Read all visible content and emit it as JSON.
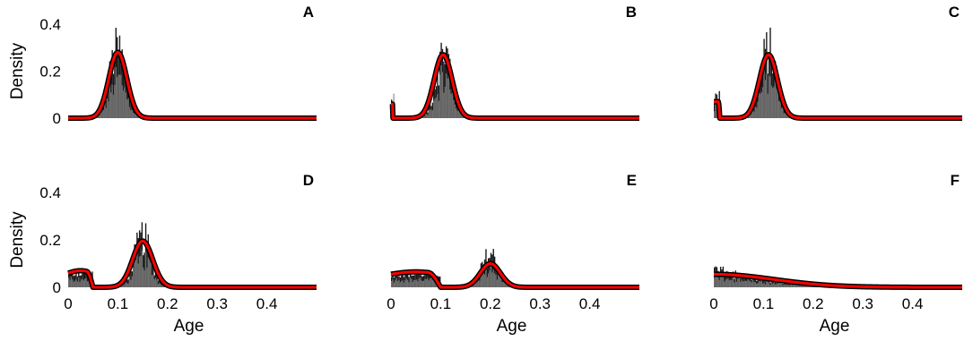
{
  "chart_data": [
    {
      "type": "histogram",
      "panel_label": "A",
      "histograms": [
        {
          "start": 0.05,
          "end": 0.15,
          "peak_density": 0.4
        }
      ],
      "fit_curve": {
        "color": "#ff0000",
        "components": [
          {
            "shape": "gaussian",
            "mean": 0.1,
            "sd": 0.018,
            "amplitude": 0.28
          }
        ]
      },
      "xlim": [
        0,
        0.5
      ],
      "ylim": [
        0,
        0.4
      ],
      "ylabel": "Density",
      "yticks": [
        0,
        0.2,
        0.4
      ],
      "xlabel": "",
      "xticks": []
    },
    {
      "type": "histogram",
      "panel_label": "B",
      "histograms": [
        {
          "start": 0.0,
          "end": 0.006,
          "peak_density": 0.11
        },
        {
          "start": 0.06,
          "end": 0.155,
          "peak_density": 0.39
        }
      ],
      "fit_curve": {
        "color": "#ff0000",
        "components": [
          {
            "shape": "gaussian",
            "mean": 0.105,
            "sd": 0.018,
            "amplitude": 0.27
          },
          {
            "shape": "spike",
            "start": 0.0,
            "end": 0.004,
            "amplitude": 0.06
          }
        ]
      },
      "xlim": [
        0,
        0.5
      ],
      "ylim": [
        0,
        0.4
      ],
      "ylabel": "",
      "yticks": [],
      "xlabel": "",
      "xticks": []
    },
    {
      "type": "histogram",
      "panel_label": "C",
      "histograms": [
        {
          "start": 0.0,
          "end": 0.014,
          "peak_density": 0.12
        },
        {
          "start": 0.06,
          "end": 0.16,
          "peak_density": 0.4
        }
      ],
      "fit_curve": {
        "color": "#ff0000",
        "components": [
          {
            "shape": "gaussian",
            "mean": 0.11,
            "sd": 0.018,
            "amplitude": 0.27
          },
          {
            "shape": "spike",
            "start": 0.0,
            "end": 0.012,
            "amplitude": 0.07
          }
        ]
      },
      "xlim": [
        0,
        0.5
      ],
      "ylim": [
        0,
        0.4
      ],
      "ylabel": "",
      "yticks": [],
      "xlabel": "",
      "xticks": []
    },
    {
      "type": "histogram",
      "panel_label": "D",
      "histograms": [
        {
          "start": 0.0,
          "end": 0.05,
          "peak_density": 0.08
        },
        {
          "start": 0.1,
          "end": 0.2,
          "peak_density": 0.29
        }
      ],
      "fit_curve": {
        "color": "#ff0000",
        "components": [
          {
            "shape": "gaussian",
            "mean": 0.15,
            "sd": 0.02,
            "amplitude": 0.195
          },
          {
            "shape": "plateau",
            "start": 0.0,
            "end": 0.05,
            "amplitude": 0.07
          }
        ]
      },
      "xlim": [
        0,
        0.5
      ],
      "ylim": [
        0,
        0.4
      ],
      "ylabel": "Density",
      "yticks": [
        0,
        0.2,
        0.4
      ],
      "xlabel": "Age",
      "xticks": [
        0,
        0.1,
        0.2,
        0.3,
        0.4
      ]
    },
    {
      "type": "histogram",
      "panel_label": "E",
      "histograms": [
        {
          "start": 0.0,
          "end": 0.1,
          "peak_density": 0.075
        },
        {
          "start": 0.15,
          "end": 0.25,
          "peak_density": 0.19
        }
      ],
      "fit_curve": {
        "color": "#ff0000",
        "components": [
          {
            "shape": "gaussian",
            "mean": 0.2,
            "sd": 0.02,
            "amplitude": 0.1
          },
          {
            "shape": "plateau",
            "start": 0.0,
            "end": 0.1,
            "amplitude": 0.065
          }
        ]
      },
      "xlim": [
        0,
        0.5
      ],
      "ylim": [
        0,
        0.4
      ],
      "ylabel": "",
      "yticks": [],
      "xlabel": "Age",
      "xticks": [
        0,
        0.1,
        0.2,
        0.3,
        0.4
      ]
    },
    {
      "type": "histogram",
      "panel_label": "F",
      "histograms": [
        {
          "start": 0.0,
          "end": 0.5,
          "peak_density": 0.1,
          "decay": "exponential"
        }
      ],
      "fit_curve": {
        "color": "#ff0000",
        "components": [
          {
            "shape": "half-gaussian",
            "start": 0.0,
            "sd": 0.12,
            "amplitude": 0.055
          }
        ]
      },
      "xlim": [
        0,
        0.5
      ],
      "ylim": [
        0,
        0.4
      ],
      "ylabel": "",
      "yticks": [],
      "xlabel": "Age",
      "xticks": [
        0,
        0.1,
        0.2,
        0.3,
        0.4
      ]
    }
  ]
}
